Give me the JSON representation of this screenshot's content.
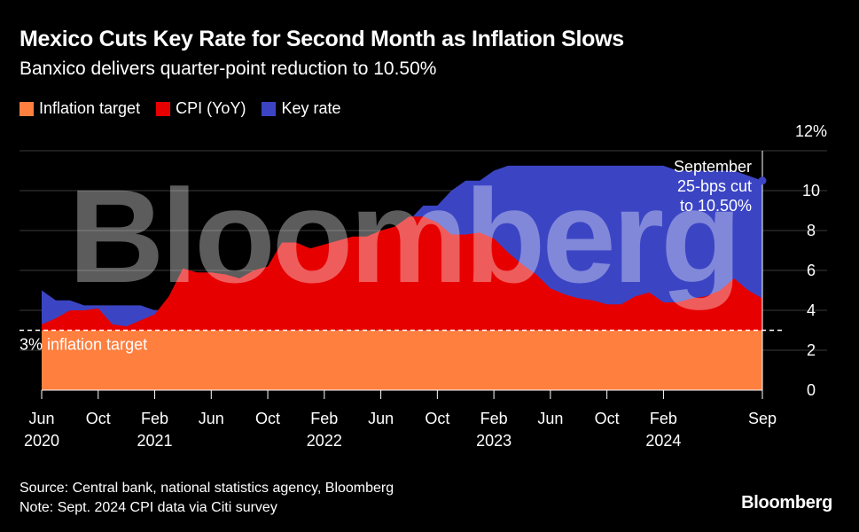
{
  "header": {
    "title": "Mexico Cuts Key Rate for Second Month as Inflation Slows",
    "subtitle": "Banxico delivers quarter-point reduction to 10.50%"
  },
  "legend": [
    {
      "label": "Inflation target",
      "color": "#ff7f3f"
    },
    {
      "label": "CPI (YoY)",
      "color": "#e60000"
    },
    {
      "label": "Key rate",
      "color": "#3b45c4"
    }
  ],
  "watermark": "Bloomberg",
  "footer": {
    "source": "Source: Central bank, national statistics agency, Bloomberg",
    "note": "Note: Sept. 2024 CPI data via Citi survey",
    "brand": "Bloomberg"
  },
  "chart_data": {
    "type": "area",
    "title": "Mexico Cuts Key Rate for Second Month as Inflation Slows",
    "subtitle": "Banxico delivers quarter-point reduction to 10.50%",
    "x_unit": "month",
    "x_start": "2020-06",
    "x_end": "2024-09",
    "ylim": [
      0,
      12
    ],
    "y_ticks": [
      {
        "value": 12,
        "label": "12%"
      },
      {
        "value": 10,
        "label": "10"
      },
      {
        "value": 8,
        "label": "8"
      },
      {
        "value": 6,
        "label": "6"
      },
      {
        "value": 4,
        "label": "4"
      },
      {
        "value": 2,
        "label": "2"
      },
      {
        "value": 0,
        "label": "0"
      }
    ],
    "x_ticks": [
      {
        "date": "2020-06",
        "label": "Jun",
        "year": "2020"
      },
      {
        "date": "2020-10",
        "label": "Oct",
        "year": ""
      },
      {
        "date": "2021-02",
        "label": "Feb",
        "year": "2021"
      },
      {
        "date": "2021-06",
        "label": "Jun",
        "year": ""
      },
      {
        "date": "2021-10",
        "label": "Oct",
        "year": ""
      },
      {
        "date": "2022-02",
        "label": "Feb",
        "year": "2022"
      },
      {
        "date": "2022-06",
        "label": "Jun",
        "year": ""
      },
      {
        "date": "2022-10",
        "label": "Oct",
        "year": ""
      },
      {
        "date": "2023-02",
        "label": "Feb",
        "year": "2023"
      },
      {
        "date": "2023-06",
        "label": "Jun",
        "year": ""
      },
      {
        "date": "2023-10",
        "label": "Oct",
        "year": ""
      },
      {
        "date": "2024-02",
        "label": "Feb",
        "year": "2024"
      },
      {
        "date": "2024-09",
        "label": "Sep",
        "year": ""
      }
    ],
    "grid": true,
    "series": [
      {
        "name": "Key rate",
        "color": "#3b45c4",
        "points": [
          [
            "2020-06",
            5.0
          ],
          [
            "2020-07",
            4.5
          ],
          [
            "2020-08",
            4.5
          ],
          [
            "2020-09",
            4.25
          ],
          [
            "2020-10",
            4.25
          ],
          [
            "2020-11",
            4.25
          ],
          [
            "2020-12",
            4.25
          ],
          [
            "2021-01",
            4.25
          ],
          [
            "2021-02",
            4.0
          ],
          [
            "2021-03",
            4.0
          ],
          [
            "2021-04",
            4.0
          ],
          [
            "2021-05",
            4.0
          ],
          [
            "2021-06",
            4.25
          ],
          [
            "2021-07",
            4.25
          ],
          [
            "2021-08",
            4.5
          ],
          [
            "2021-09",
            4.75
          ],
          [
            "2021-10",
            4.75
          ],
          [
            "2021-11",
            5.0
          ],
          [
            "2021-12",
            5.5
          ],
          [
            "2022-01",
            5.5
          ],
          [
            "2022-02",
            6.0
          ],
          [
            "2022-03",
            6.5
          ],
          [
            "2022-04",
            6.5
          ],
          [
            "2022-05",
            7.0
          ],
          [
            "2022-06",
            7.75
          ],
          [
            "2022-07",
            7.75
          ],
          [
            "2022-08",
            8.5
          ],
          [
            "2022-09",
            9.25
          ],
          [
            "2022-10",
            9.25
          ],
          [
            "2022-11",
            10.0
          ],
          [
            "2022-12",
            10.5
          ],
          [
            "2023-01",
            10.5
          ],
          [
            "2023-02",
            11.0
          ],
          [
            "2023-03",
            11.25
          ],
          [
            "2023-04",
            11.25
          ],
          [
            "2023-05",
            11.25
          ],
          [
            "2023-06",
            11.25
          ],
          [
            "2023-07",
            11.25
          ],
          [
            "2023-08",
            11.25
          ],
          [
            "2023-09",
            11.25
          ],
          [
            "2023-10",
            11.25
          ],
          [
            "2023-11",
            11.25
          ],
          [
            "2023-12",
            11.25
          ],
          [
            "2024-01",
            11.25
          ],
          [
            "2024-02",
            11.25
          ],
          [
            "2024-03",
            11.0
          ],
          [
            "2024-04",
            11.0
          ],
          [
            "2024-05",
            11.0
          ],
          [
            "2024-06",
            11.0
          ],
          [
            "2024-07",
            11.0
          ],
          [
            "2024-08",
            10.75
          ],
          [
            "2024-09",
            10.5
          ]
        ]
      },
      {
        "name": "CPI (YoY)",
        "color": "#e60000",
        "points": [
          [
            "2020-06",
            3.3
          ],
          [
            "2020-07",
            3.6
          ],
          [
            "2020-08",
            4.0
          ],
          [
            "2020-09",
            4.0
          ],
          [
            "2020-10",
            4.1
          ],
          [
            "2020-11",
            3.3
          ],
          [
            "2020-12",
            3.2
          ],
          [
            "2021-01",
            3.5
          ],
          [
            "2021-02",
            3.8
          ],
          [
            "2021-03",
            4.7
          ],
          [
            "2021-04",
            6.1
          ],
          [
            "2021-05",
            5.9
          ],
          [
            "2021-06",
            5.9
          ],
          [
            "2021-07",
            5.8
          ],
          [
            "2021-08",
            5.6
          ],
          [
            "2021-09",
            6.0
          ],
          [
            "2021-10",
            6.2
          ],
          [
            "2021-11",
            7.4
          ],
          [
            "2021-12",
            7.4
          ],
          [
            "2022-01",
            7.1
          ],
          [
            "2022-02",
            7.3
          ],
          [
            "2022-03",
            7.5
          ],
          [
            "2022-04",
            7.7
          ],
          [
            "2022-05",
            7.7
          ],
          [
            "2022-06",
            8.0
          ],
          [
            "2022-07",
            8.2
          ],
          [
            "2022-08",
            8.7
          ],
          [
            "2022-09",
            8.7
          ],
          [
            "2022-10",
            8.4
          ],
          [
            "2022-11",
            7.8
          ],
          [
            "2022-12",
            7.8
          ],
          [
            "2023-01",
            7.9
          ],
          [
            "2023-02",
            7.6
          ],
          [
            "2023-03",
            6.9
          ],
          [
            "2023-04",
            6.3
          ],
          [
            "2023-05",
            5.8
          ],
          [
            "2023-06",
            5.1
          ],
          [
            "2023-07",
            4.8
          ],
          [
            "2023-08",
            4.6
          ],
          [
            "2023-09",
            4.5
          ],
          [
            "2023-10",
            4.3
          ],
          [
            "2023-11",
            4.3
          ],
          [
            "2023-12",
            4.7
          ],
          [
            "2024-01",
            4.9
          ],
          [
            "2024-02",
            4.4
          ],
          [
            "2024-03",
            4.4
          ],
          [
            "2024-04",
            4.6
          ],
          [
            "2024-05",
            4.7
          ],
          [
            "2024-06",
            5.0
          ],
          [
            "2024-07",
            5.6
          ],
          [
            "2024-08",
            5.0
          ],
          [
            "2024-09",
            4.6
          ]
        ]
      },
      {
        "name": "Inflation target",
        "color": "#ff7f3f",
        "points": [
          [
            "2020-06",
            3.0
          ],
          [
            "2024-09",
            3.0
          ]
        ]
      }
    ],
    "annotations": [
      {
        "text": "3% inflation target",
        "value": 3
      },
      {
        "text": "September 25-bps cut to 10.50%",
        "lines": [
          "September",
          "25-bps cut",
          "to 10.50%"
        ],
        "date": "2024-09",
        "value": 10.5
      }
    ]
  }
}
